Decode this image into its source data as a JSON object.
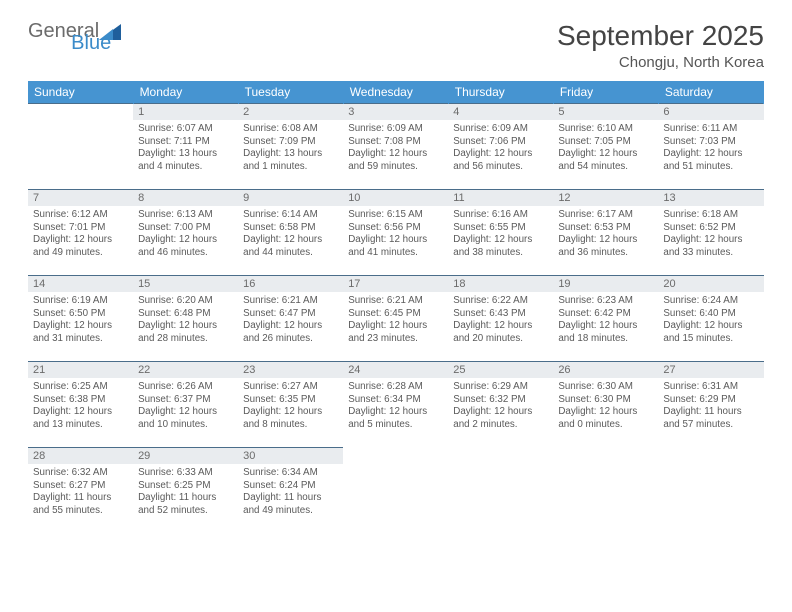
{
  "brand": {
    "general": "General",
    "blue": "Blue"
  },
  "title": "September 2025",
  "subtitle": "Chongju, North Korea",
  "colors": {
    "header_bg": "#4694d1",
    "header_text": "#ffffff",
    "daynum_bg": "#e9ecef",
    "daynum_text": "#6b6b6b",
    "border": "#4a6d8a",
    "body_text": "#5a5a5a"
  },
  "weekdays": [
    "Sunday",
    "Monday",
    "Tuesday",
    "Wednesday",
    "Thursday",
    "Friday",
    "Saturday"
  ],
  "weeks": [
    [
      {
        "empty": true
      },
      {
        "day": "1",
        "sunrise": "Sunrise: 6:07 AM",
        "sunset": "Sunset: 7:11 PM",
        "daylight1": "Daylight: 13 hours",
        "daylight2": "and 4 minutes."
      },
      {
        "day": "2",
        "sunrise": "Sunrise: 6:08 AM",
        "sunset": "Sunset: 7:09 PM",
        "daylight1": "Daylight: 13 hours",
        "daylight2": "and 1 minutes."
      },
      {
        "day": "3",
        "sunrise": "Sunrise: 6:09 AM",
        "sunset": "Sunset: 7:08 PM",
        "daylight1": "Daylight: 12 hours",
        "daylight2": "and 59 minutes."
      },
      {
        "day": "4",
        "sunrise": "Sunrise: 6:09 AM",
        "sunset": "Sunset: 7:06 PM",
        "daylight1": "Daylight: 12 hours",
        "daylight2": "and 56 minutes."
      },
      {
        "day": "5",
        "sunrise": "Sunrise: 6:10 AM",
        "sunset": "Sunset: 7:05 PM",
        "daylight1": "Daylight: 12 hours",
        "daylight2": "and 54 minutes."
      },
      {
        "day": "6",
        "sunrise": "Sunrise: 6:11 AM",
        "sunset": "Sunset: 7:03 PM",
        "daylight1": "Daylight: 12 hours",
        "daylight2": "and 51 minutes."
      }
    ],
    [
      {
        "day": "7",
        "sunrise": "Sunrise: 6:12 AM",
        "sunset": "Sunset: 7:01 PM",
        "daylight1": "Daylight: 12 hours",
        "daylight2": "and 49 minutes."
      },
      {
        "day": "8",
        "sunrise": "Sunrise: 6:13 AM",
        "sunset": "Sunset: 7:00 PM",
        "daylight1": "Daylight: 12 hours",
        "daylight2": "and 46 minutes."
      },
      {
        "day": "9",
        "sunrise": "Sunrise: 6:14 AM",
        "sunset": "Sunset: 6:58 PM",
        "daylight1": "Daylight: 12 hours",
        "daylight2": "and 44 minutes."
      },
      {
        "day": "10",
        "sunrise": "Sunrise: 6:15 AM",
        "sunset": "Sunset: 6:56 PM",
        "daylight1": "Daylight: 12 hours",
        "daylight2": "and 41 minutes."
      },
      {
        "day": "11",
        "sunrise": "Sunrise: 6:16 AM",
        "sunset": "Sunset: 6:55 PM",
        "daylight1": "Daylight: 12 hours",
        "daylight2": "and 38 minutes."
      },
      {
        "day": "12",
        "sunrise": "Sunrise: 6:17 AM",
        "sunset": "Sunset: 6:53 PM",
        "daylight1": "Daylight: 12 hours",
        "daylight2": "and 36 minutes."
      },
      {
        "day": "13",
        "sunrise": "Sunrise: 6:18 AM",
        "sunset": "Sunset: 6:52 PM",
        "daylight1": "Daylight: 12 hours",
        "daylight2": "and 33 minutes."
      }
    ],
    [
      {
        "day": "14",
        "sunrise": "Sunrise: 6:19 AM",
        "sunset": "Sunset: 6:50 PM",
        "daylight1": "Daylight: 12 hours",
        "daylight2": "and 31 minutes."
      },
      {
        "day": "15",
        "sunrise": "Sunrise: 6:20 AM",
        "sunset": "Sunset: 6:48 PM",
        "daylight1": "Daylight: 12 hours",
        "daylight2": "and 28 minutes."
      },
      {
        "day": "16",
        "sunrise": "Sunrise: 6:21 AM",
        "sunset": "Sunset: 6:47 PM",
        "daylight1": "Daylight: 12 hours",
        "daylight2": "and 26 minutes."
      },
      {
        "day": "17",
        "sunrise": "Sunrise: 6:21 AM",
        "sunset": "Sunset: 6:45 PM",
        "daylight1": "Daylight: 12 hours",
        "daylight2": "and 23 minutes."
      },
      {
        "day": "18",
        "sunrise": "Sunrise: 6:22 AM",
        "sunset": "Sunset: 6:43 PM",
        "daylight1": "Daylight: 12 hours",
        "daylight2": "and 20 minutes."
      },
      {
        "day": "19",
        "sunrise": "Sunrise: 6:23 AM",
        "sunset": "Sunset: 6:42 PM",
        "daylight1": "Daylight: 12 hours",
        "daylight2": "and 18 minutes."
      },
      {
        "day": "20",
        "sunrise": "Sunrise: 6:24 AM",
        "sunset": "Sunset: 6:40 PM",
        "daylight1": "Daylight: 12 hours",
        "daylight2": "and 15 minutes."
      }
    ],
    [
      {
        "day": "21",
        "sunrise": "Sunrise: 6:25 AM",
        "sunset": "Sunset: 6:38 PM",
        "daylight1": "Daylight: 12 hours",
        "daylight2": "and 13 minutes."
      },
      {
        "day": "22",
        "sunrise": "Sunrise: 6:26 AM",
        "sunset": "Sunset: 6:37 PM",
        "daylight1": "Daylight: 12 hours",
        "daylight2": "and 10 minutes."
      },
      {
        "day": "23",
        "sunrise": "Sunrise: 6:27 AM",
        "sunset": "Sunset: 6:35 PM",
        "daylight1": "Daylight: 12 hours",
        "daylight2": "and 8 minutes."
      },
      {
        "day": "24",
        "sunrise": "Sunrise: 6:28 AM",
        "sunset": "Sunset: 6:34 PM",
        "daylight1": "Daylight: 12 hours",
        "daylight2": "and 5 minutes."
      },
      {
        "day": "25",
        "sunrise": "Sunrise: 6:29 AM",
        "sunset": "Sunset: 6:32 PM",
        "daylight1": "Daylight: 12 hours",
        "daylight2": "and 2 minutes."
      },
      {
        "day": "26",
        "sunrise": "Sunrise: 6:30 AM",
        "sunset": "Sunset: 6:30 PM",
        "daylight1": "Daylight: 12 hours",
        "daylight2": "and 0 minutes."
      },
      {
        "day": "27",
        "sunrise": "Sunrise: 6:31 AM",
        "sunset": "Sunset: 6:29 PM",
        "daylight1": "Daylight: 11 hours",
        "daylight2": "and 57 minutes."
      }
    ],
    [
      {
        "day": "28",
        "sunrise": "Sunrise: 6:32 AM",
        "sunset": "Sunset: 6:27 PM",
        "daylight1": "Daylight: 11 hours",
        "daylight2": "and 55 minutes."
      },
      {
        "day": "29",
        "sunrise": "Sunrise: 6:33 AM",
        "sunset": "Sunset: 6:25 PM",
        "daylight1": "Daylight: 11 hours",
        "daylight2": "and 52 minutes."
      },
      {
        "day": "30",
        "sunrise": "Sunrise: 6:34 AM",
        "sunset": "Sunset: 6:24 PM",
        "daylight1": "Daylight: 11 hours",
        "daylight2": "and 49 minutes."
      },
      {
        "empty": true
      },
      {
        "empty": true
      },
      {
        "empty": true
      },
      {
        "empty": true
      }
    ]
  ]
}
